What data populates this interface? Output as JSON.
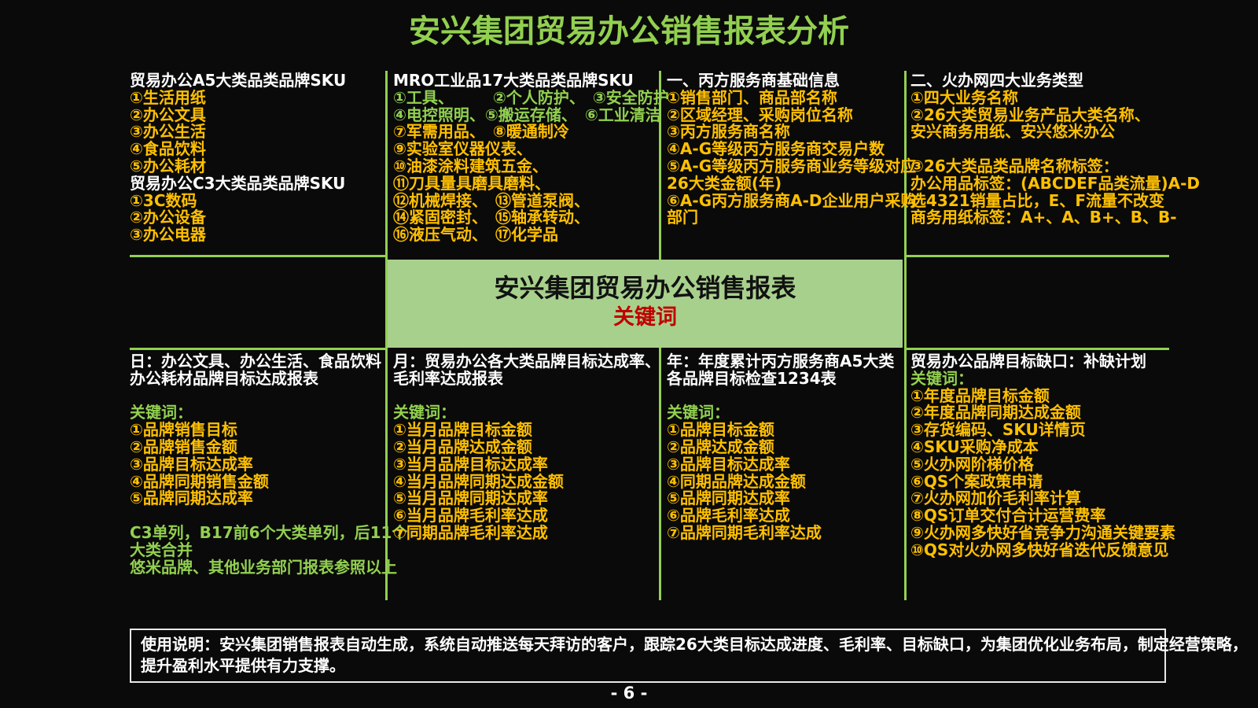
{
  "page": {
    "title": "安兴集团贸易办公销售报表分析",
    "page_number": "- 6 -"
  },
  "colors": {
    "accent_green": "#92D050",
    "banner_green": "#A8D08D",
    "item_orange": "#FFC000",
    "keyword_red": "#C00000",
    "text_white": "#FFFFFF",
    "background": "#0A0A0A"
  },
  "banner": {
    "title": "安兴集团贸易办公销售报表",
    "keyword_label": "关键词"
  },
  "blocks": {
    "a5_sku": {
      "lines": [
        {
          "t": "贸易办公A5大类品类品牌SKU",
          "c": "white"
        },
        {
          "t": "①生活用纸",
          "c": "orange"
        },
        {
          "t": "②办公文具",
          "c": "orange"
        },
        {
          "t": "③办公生活",
          "c": "orange"
        },
        {
          "t": "④食品饮料",
          "c": "orange"
        },
        {
          "t": "⑤办公耗材",
          "c": "orange"
        },
        {
          "t": "贸易办公C3大类品类品牌SKU",
          "c": "white"
        },
        {
          "t": "①3C数码",
          "c": "orange"
        },
        {
          "t": "②办公设备",
          "c": "orange"
        },
        {
          "t": "③办公电器",
          "c": "orange"
        }
      ]
    },
    "mro_sku": {
      "lines": [
        {
          "t": "MRO工业品17大类品类品牌SKU",
          "c": "white"
        },
        {
          "t": "①工具、　　　②个人防护、　③安全防护",
          "c": "green"
        },
        {
          "t": "④电控照明、⑤搬运存储、　⑥工业清洁",
          "c": "green"
        },
        {
          "t": "⑦军需用品、　⑧暖通制冷",
          "c": "orange"
        },
        {
          "t": "⑨实验室仪器仪表、",
          "c": "orange"
        },
        {
          "t": "⑩油漆涂料建筑五金、",
          "c": "orange"
        },
        {
          "t": "⑪刀具量具磨具磨料、",
          "c": "orange"
        },
        {
          "t": "⑫机械焊接、　⑬管道泵阀、",
          "c": "orange"
        },
        {
          "t": "⑭紧固密封、　⑮轴承转动、",
          "c": "orange"
        },
        {
          "t": "⑯液压气动、　⑰化学品",
          "c": "orange"
        }
      ]
    },
    "provider_info": {
      "lines": [
        {
          "t": "一、丙方服务商基础信息",
          "c": "white"
        },
        {
          "t": "①销售部门、商品部名称",
          "c": "orange"
        },
        {
          "t": "②区域经理、采购岗位名称",
          "c": "orange"
        },
        {
          "t": "③丙方服务商名称",
          "c": "orange"
        },
        {
          "t": "④A-G等级丙方服务商交易户数",
          "c": "orange"
        },
        {
          "t": "⑤A-G等级丙方服务商业务等级对应",
          "c": "orange"
        },
        {
          "t": "26大类金额(年)",
          "c": "orange"
        },
        {
          "t": "⑥A-G丙方服务商A-D企业用户采购",
          "c": "orange"
        },
        {
          "t": "部门",
          "c": "orange"
        }
      ]
    },
    "business_types": {
      "lines": [
        {
          "t": "二、火办网四大业务类型",
          "c": "white"
        },
        {
          "t": "①四大业务名称",
          "c": "orange"
        },
        {
          "t": "②26大类贸易业务产品大类名称、",
          "c": "orange"
        },
        {
          "t": "安兴商务用纸、安兴悠米办公",
          "c": "orange"
        },
        {
          "t": "",
          "c": "orange"
        },
        {
          "t": "③26大类品类品牌名称标签：",
          "c": "orange"
        },
        {
          "t": "办公用品标签：(ABCDEF品类流量)A-D",
          "c": "orange"
        },
        {
          "t": "选4321销量占比，E、F流量不改变",
          "c": "orange"
        },
        {
          "t": "商务用纸标签：A+、A、B+、B、B-",
          "c": "orange"
        }
      ]
    },
    "daily_report": {
      "lines": [
        {
          "t": "日：办公文具、办公生活、食品饮料",
          "c": "white"
        },
        {
          "t": "办公耗材品牌目标达成报表",
          "c": "white"
        },
        {
          "t": "",
          "c": "white"
        },
        {
          "t": "关键词：",
          "c": "green"
        },
        {
          "t": "①品牌销售目标",
          "c": "orange"
        },
        {
          "t": "②品牌销售金额",
          "c": "orange"
        },
        {
          "t": "③品牌目标达成率",
          "c": "orange"
        },
        {
          "t": "④品牌同期销售金额",
          "c": "orange"
        },
        {
          "t": "⑤品牌同期达成率",
          "c": "orange"
        },
        {
          "t": "",
          "c": "green"
        },
        {
          "t": "C3单列，B17前6个大类单列，后11个",
          "c": "green"
        },
        {
          "t": "大类合并",
          "c": "green"
        },
        {
          "t": "悠米品牌、其他业务部门报表参照以上",
          "c": "green"
        }
      ]
    },
    "monthly_report": {
      "lines": [
        {
          "t": "月：贸易办公各大类品牌目标达成率、",
          "c": "white"
        },
        {
          "t": "毛利率达成报表",
          "c": "white"
        },
        {
          "t": "",
          "c": "white"
        },
        {
          "t": "关键词：",
          "c": "green"
        },
        {
          "t": "①当月品牌目标金额",
          "c": "orange"
        },
        {
          "t": "②当月品牌达成金额",
          "c": "orange"
        },
        {
          "t": "③当月品牌目标达成率",
          "c": "orange"
        },
        {
          "t": "④当月品牌同期达成金额",
          "c": "orange"
        },
        {
          "t": "⑤当月品牌同期达成率",
          "c": "orange"
        },
        {
          "t": "⑥当月品牌毛利率达成",
          "c": "orange"
        },
        {
          "t": "⑦同期品牌毛利率达成",
          "c": "orange"
        }
      ]
    },
    "yearly_report": {
      "lines": [
        {
          "t": "年：年度累计丙方服务商A5大类",
          "c": "white"
        },
        {
          "t": "各品牌目标检查1234表",
          "c": "white"
        },
        {
          "t": "",
          "c": "white"
        },
        {
          "t": "关键词：",
          "c": "green"
        },
        {
          "t": "①品牌目标金额",
          "c": "orange"
        },
        {
          "t": "②品牌达成金额",
          "c": "orange"
        },
        {
          "t": "③品牌目标达成率",
          "c": "orange"
        },
        {
          "t": "④同期品牌达成金额",
          "c": "orange"
        },
        {
          "t": "⑤品牌同期达成率",
          "c": "orange"
        },
        {
          "t": "⑥品牌毛利率达成",
          "c": "orange"
        },
        {
          "t": "⑦品牌同期毛利率达成",
          "c": "orange"
        }
      ]
    },
    "gap_plan": {
      "lines": [
        {
          "t": "贸易办公品牌目标缺口：补缺计划",
          "c": "white"
        },
        {
          "t": "关键词：",
          "c": "green"
        },
        {
          "t": "①年度品牌目标金额",
          "c": "orange"
        },
        {
          "t": "②年度品牌同期达成金额",
          "c": "orange"
        },
        {
          "t": "③存货编码、SKU详情页",
          "c": "orange"
        },
        {
          "t": "④SKU采购净成本",
          "c": "orange"
        },
        {
          "t": "⑤火办网阶梯价格",
          "c": "orange"
        },
        {
          "t": "⑥QS个案政策申请",
          "c": "orange"
        },
        {
          "t": "⑦火办网加价毛利率计算",
          "c": "orange"
        },
        {
          "t": "⑧QS订单交付合计运营费率",
          "c": "orange"
        },
        {
          "t": "⑨火办网多快好省竞争力沟通关键要素",
          "c": "orange"
        },
        {
          "t": "⑩QS对火办网多快好省迭代反馈意见",
          "c": "orange"
        }
      ]
    }
  },
  "footer": {
    "note_lines": [
      "使用说明：安兴集团销售报表自动生成，系统自动推送每天拜访的客户，跟踪26大类目标达成进度、毛利率、目标缺口，为集团优化业务布局，制定经营策略，",
      "提升盈利水平提供有力支撑。"
    ]
  }
}
